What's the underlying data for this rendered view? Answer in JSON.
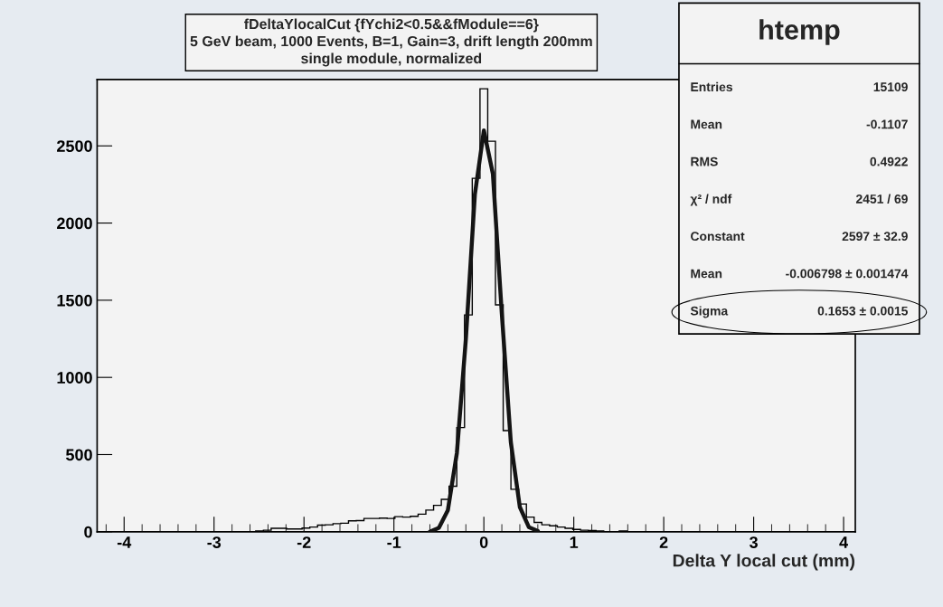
{
  "chart_data": {
    "type": "histogram",
    "title": "fDeltaYlocalCut {fYchi2<0.5&&fModule==6}\n5 GeV beam, 1000 Events, B=1, Gain=3, drift length 200mm\nsingle module, normalized",
    "xlabel": "Delta Y local cut (mm)",
    "bins": [
      -2.537,
      -2.451,
      -2.365,
      -2.279,
      -2.193,
      -2.107,
      -2.021,
      -1.935,
      -1.849,
      -1.763,
      -1.677,
      -1.591,
      -1.505,
      -1.419,
      -1.333,
      -1.247,
      -1.161,
      -1.075,
      -0.989,
      -0.903,
      -0.817,
      -0.731,
      -0.645,
      -0.559,
      -0.473,
      -0.387,
      -0.301,
      -0.215,
      -0.129,
      -0.043,
      0.043,
      0.129,
      0.215,
      0.301,
      0.387,
      0.473,
      0.559,
      0.645,
      0.731,
      0.817,
      0.903,
      0.989,
      1.075,
      1.161,
      1.247,
      1.333,
      1.419,
      1.505,
      1.591
    ],
    "values": [
      5,
      10,
      22,
      22,
      18,
      18,
      24,
      30,
      43,
      45,
      52,
      55,
      71,
      72,
      86,
      86,
      88,
      86,
      98,
      95,
      100,
      114,
      140,
      171,
      210,
      295,
      675,
      1405,
      2290,
      2870,
      2530,
      1470,
      655,
      275,
      180,
      95,
      60,
      45,
      38,
      30,
      22,
      15,
      10,
      8,
      5,
      0,
      0,
      5
    ],
    "color": "#000000",
    "series": [
      {
        "type": "line",
        "color": "#141414",
        "x": [
          -0.6,
          -0.5,
          -0.4,
          -0.3,
          -0.2,
          -0.1,
          0,
          0.1,
          0.2,
          0.3,
          0.4,
          0.5,
          0.6
        ],
        "values": [
          0,
          25,
          140,
          510,
          1250,
          2185,
          2600,
          2320,
          1410,
          580,
          160,
          30,
          5
        ]
      }
    ],
    "xlim": [
      -4.3,
      4.13
    ],
    "ylim": [
      0,
      2930
    ],
    "xticks": [
      -4,
      -3,
      -2,
      -1,
      0,
      1,
      2,
      3,
      4
    ],
    "yticks": [
      0,
      500,
      1000,
      1500,
      2000,
      2500
    ],
    "grid": false,
    "legend": false,
    "annotations": [
      "htemp",
      "Entries",
      "15109",
      "Mean",
      "-0.1107",
      "RMS",
      "0.4922",
      "χ² / ndf",
      "2451 / 69",
      "Constant",
      "2597 ± 32.9",
      "Mean",
      "-0.006798 ± 0.001474",
      "Sigma",
      "0.1653 ± 0.0015"
    ]
  }
}
